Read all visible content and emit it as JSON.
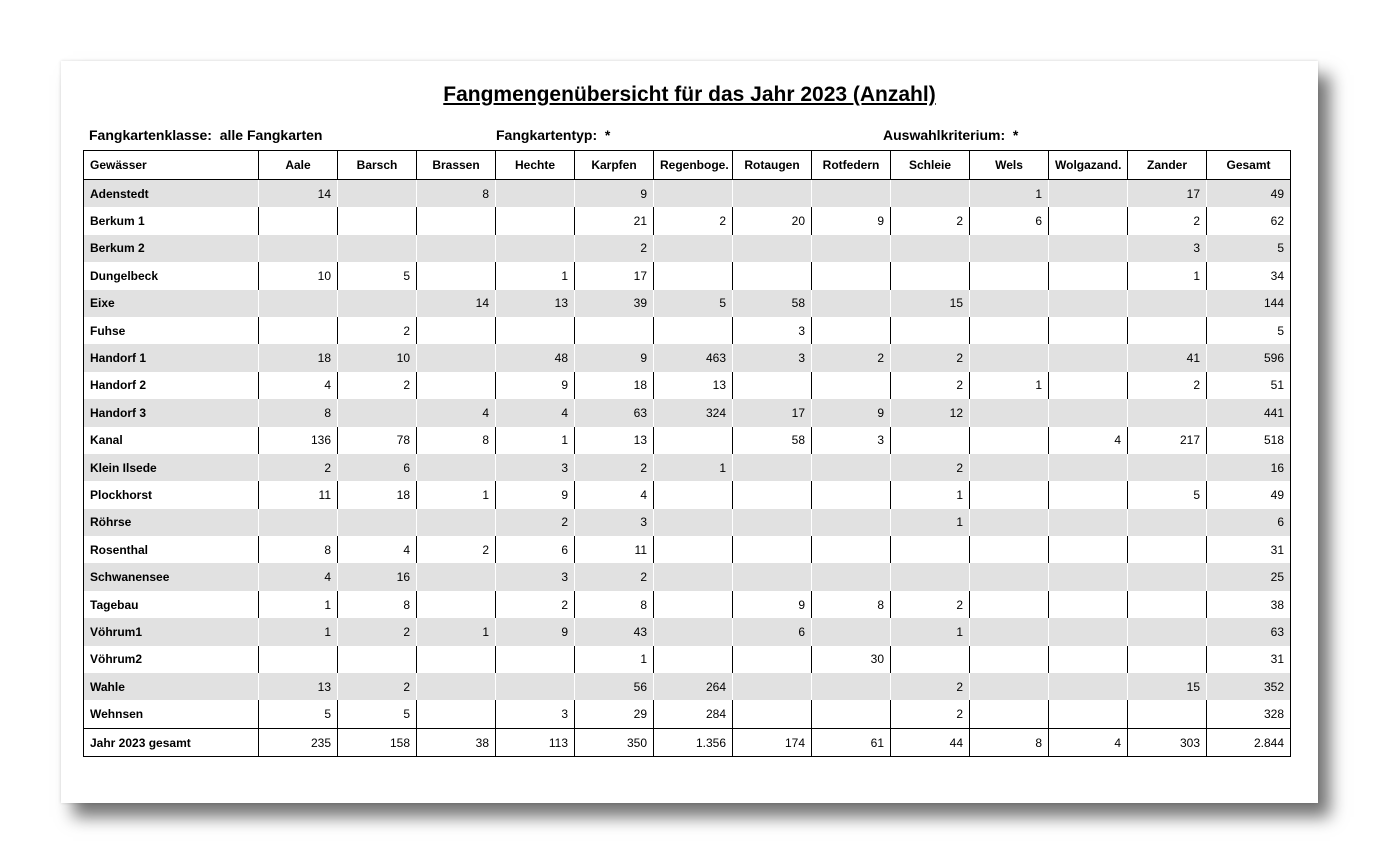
{
  "title": "Fangmengenübersicht für das Jahr 2023 (Anzahl)",
  "filters": {
    "klasse_label": "Fangkartenklasse:",
    "klasse_value": "alle Fangkarten",
    "typ_label": "Fangkartentyp:",
    "typ_value": "*",
    "kriterium_label": "Auswahlkriterium:",
    "kriterium_value": "*"
  },
  "table": {
    "headers": [
      "Gewässer",
      "Aale",
      "Barsch",
      "Brassen",
      "Hechte",
      "Karpfen",
      "Regenboge.",
      "Rotaugen",
      "Rotfedern",
      "Schleie",
      "Wels",
      "Wolgazand.",
      "Zander",
      "Gesamt"
    ],
    "rows": [
      [
        "Adenstedt",
        "14",
        "",
        "8",
        "",
        "9",
        "",
        "",
        "",
        "",
        "1",
        "",
        "17",
        "49"
      ],
      [
        "Berkum 1",
        "",
        "",
        "",
        "",
        "21",
        "2",
        "20",
        "9",
        "2",
        "6",
        "",
        "2",
        "62"
      ],
      [
        "Berkum 2",
        "",
        "",
        "",
        "",
        "2",
        "",
        "",
        "",
        "",
        "",
        "",
        "3",
        "5"
      ],
      [
        "Dungelbeck",
        "10",
        "5",
        "",
        "1",
        "17",
        "",
        "",
        "",
        "",
        "",
        "",
        "1",
        "34"
      ],
      [
        "Eixe",
        "",
        "",
        "14",
        "13",
        "39",
        "5",
        "58",
        "",
        "15",
        "",
        "",
        "",
        "144"
      ],
      [
        "Fuhse",
        "",
        "2",
        "",
        "",
        "",
        "",
        "3",
        "",
        "",
        "",
        "",
        "",
        "5"
      ],
      [
        "Handorf 1",
        "18",
        "10",
        "",
        "48",
        "9",
        "463",
        "3",
        "2",
        "2",
        "",
        "",
        "41",
        "596"
      ],
      [
        "Handorf 2",
        "4",
        "2",
        "",
        "9",
        "18",
        "13",
        "",
        "",
        "2",
        "1",
        "",
        "2",
        "51"
      ],
      [
        "Handorf 3",
        "8",
        "",
        "4",
        "4",
        "63",
        "324",
        "17",
        "9",
        "12",
        "",
        "",
        "",
        "441"
      ],
      [
        "Kanal",
        "136",
        "78",
        "8",
        "1",
        "13",
        "",
        "58",
        "3",
        "",
        "",
        "4",
        "217",
        "518"
      ],
      [
        "Klein Ilsede",
        "2",
        "6",
        "",
        "3",
        "2",
        "1",
        "",
        "",
        "2",
        "",
        "",
        "",
        "16"
      ],
      [
        "Plockhorst",
        "11",
        "18",
        "1",
        "9",
        "4",
        "",
        "",
        "",
        "1",
        "",
        "",
        "5",
        "49"
      ],
      [
        "Röhrse",
        "",
        "",
        "",
        "2",
        "3",
        "",
        "",
        "",
        "1",
        "",
        "",
        "",
        "6"
      ],
      [
        "Rosenthal",
        "8",
        "4",
        "2",
        "6",
        "11",
        "",
        "",
        "",
        "",
        "",
        "",
        "",
        "31"
      ],
      [
        "Schwanensee",
        "4",
        "16",
        "",
        "3",
        "2",
        "",
        "",
        "",
        "",
        "",
        "",
        "",
        "25"
      ],
      [
        "Tagebau",
        "1",
        "8",
        "",
        "2",
        "8",
        "",
        "9",
        "8",
        "2",
        "",
        "",
        "",
        "38"
      ],
      [
        "Vöhrum1",
        "1",
        "2",
        "1",
        "9",
        "43",
        "",
        "6",
        "",
        "1",
        "",
        "",
        "",
        "63"
      ],
      [
        "Vöhrum2",
        "",
        "",
        "",
        "",
        "1",
        "",
        "",
        "30",
        "",
        "",
        "",
        "",
        "31"
      ],
      [
        "Wahle",
        "13",
        "2",
        "",
        "",
        "56",
        "264",
        "",
        "",
        "2",
        "",
        "",
        "15",
        "352"
      ],
      [
        "Wehnsen",
        "5",
        "5",
        "",
        "3",
        "29",
        "284",
        "",
        "",
        "2",
        "",
        "",
        "",
        "328"
      ]
    ],
    "total": [
      "Jahr 2023 gesamt",
      "235",
      "158",
      "38",
      "113",
      "350",
      "1.356",
      "174",
      "61",
      "44",
      "8",
      "4",
      "303",
      "2.844"
    ]
  }
}
